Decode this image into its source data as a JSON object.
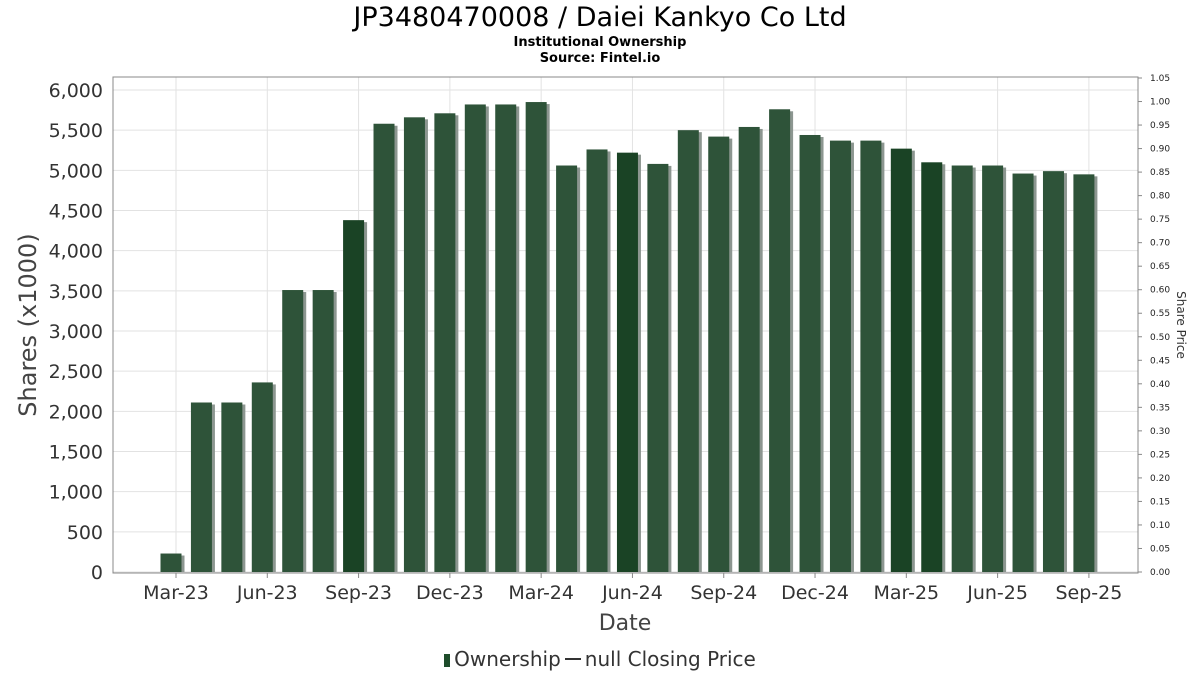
{
  "header": {
    "title": "JP3480470008 / Daiei Kankyo Co Ltd",
    "subtitle": "Institutional Ownership",
    "source": "Source: Fintel.io"
  },
  "legend": {
    "ownership": "Ownership",
    "price": "null Closing Price"
  },
  "colors": {
    "bar": "#2e5339",
    "bar_dark": "#1a4325",
    "shadow": "#8c9690",
    "grid": "#e2e2e2",
    "frame": "#888888"
  },
  "chart_data": {
    "type": "bar",
    "xlabel": "Date",
    "ylabel": "Shares (x1000)",
    "y2label": "Share Price",
    "ylim": [
      0,
      6000
    ],
    "y2lim": [
      0,
      1.05
    ],
    "yticks": [
      "0",
      "500",
      "1,000",
      "1,500",
      "2,000",
      "2,500",
      "3,000",
      "3,500",
      "4,000",
      "4,500",
      "5,000",
      "5,500",
      "6,000"
    ],
    "y2ticks": [
      "0.00",
      "0.05",
      "0.10",
      "0.15",
      "0.20",
      "0.25",
      "0.30",
      "0.35",
      "0.40",
      "0.45",
      "0.50",
      "0.55",
      "0.60",
      "0.65",
      "0.70",
      "0.75",
      "0.80",
      "0.85",
      "0.90",
      "0.95",
      "1.00",
      "1.05"
    ],
    "xticks": [
      {
        "label": "Mar-23",
        "index": 0
      },
      {
        "label": "Jun-23",
        "index": 3
      },
      {
        "label": "Sep-23",
        "index": 6
      },
      {
        "label": "Dec-23",
        "index": 9
      },
      {
        "label": "Mar-24",
        "index": 12
      },
      {
        "label": "Jun-24",
        "index": 15
      },
      {
        "label": "Sep-24",
        "index": 18
      },
      {
        "label": "Dec-24",
        "index": 21
      },
      {
        "label": "Mar-25",
        "index": 24
      },
      {
        "label": "Jun-25",
        "index": 27
      },
      {
        "label": "Sep-25",
        "index": 30
      }
    ],
    "grid": true,
    "values": [
      230,
      2110,
      2110,
      2360,
      3510,
      3510,
      4380,
      5580,
      5660,
      5710,
      5820,
      5820,
      5850,
      5060,
      5260,
      5220,
      5080,
      5500,
      5420,
      5540,
      5760,
      5440,
      5370,
      5370,
      5270,
      5100,
      5060,
      5060,
      4960,
      4990,
      4950
    ],
    "dark_bars": [
      6,
      15,
      24,
      25
    ]
  }
}
